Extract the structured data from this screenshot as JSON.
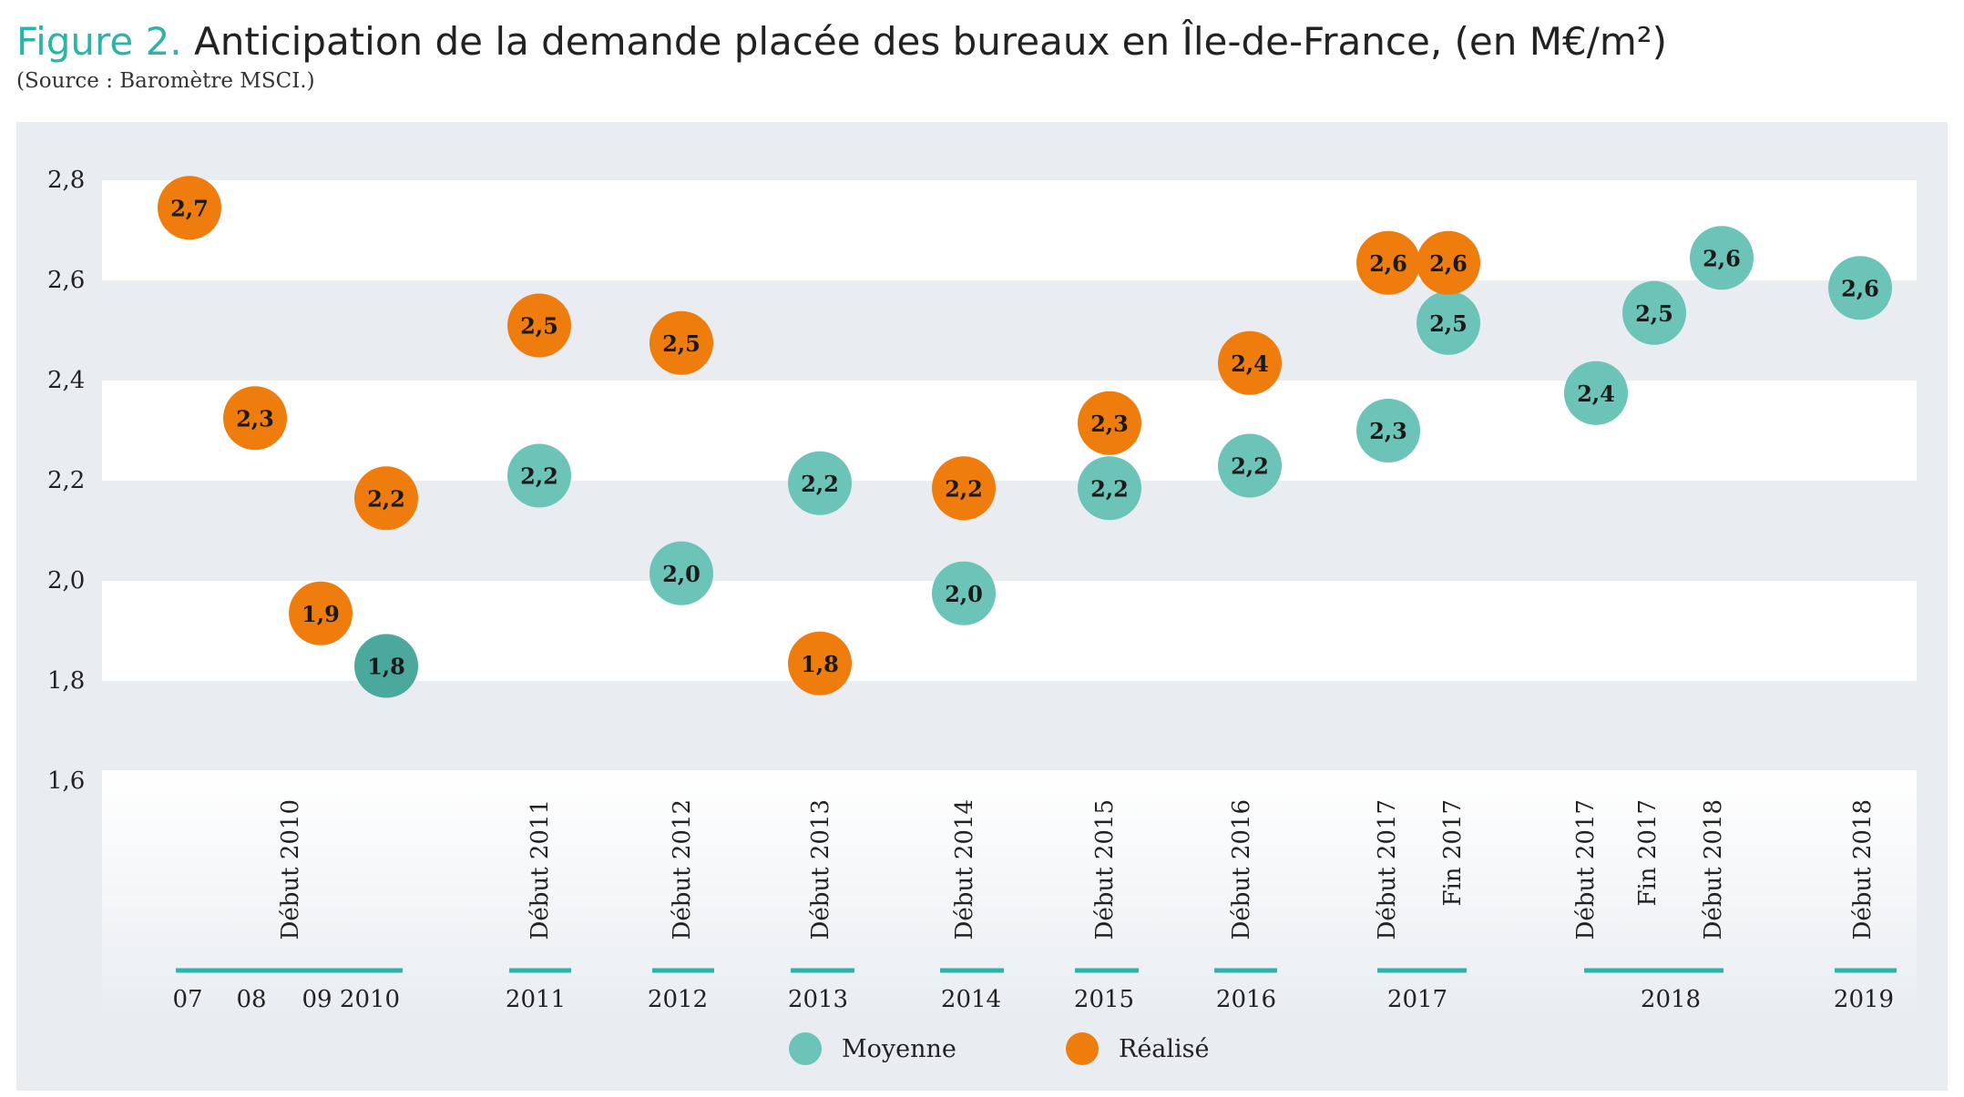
{
  "header": {
    "figure_number": "Figure 2.",
    "title": "Anticipation de la demande placée des bureaux en Île-de-France, (en M€/m²)",
    "source": "(Source : Baromètre MSCI.)"
  },
  "colors": {
    "moyenne": "#6cc3b7",
    "realise": "#ef7d0d",
    "band_white": "#ffffff",
    "panel_bg": "#e9edf1",
    "axis_teal": "#2bb5a8"
  },
  "legend": {
    "moyenne_label": "Moyenne",
    "realise_label": "Réalisé"
  },
  "chart_data": {
    "type": "scatter",
    "ylim": [
      1.6,
      2.8
    ],
    "yticks": [
      "1,6",
      "1,8",
      "2,0",
      "2,2",
      "2,4",
      "2,6",
      "2,8"
    ],
    "x_categories": [
      "07",
      "08",
      "09",
      "2010",
      "Début 2011",
      "Début 2012",
      "Début 2013",
      "Début 2014",
      "Début 2015",
      "Début 2016",
      "Début 2017",
      "Fin 2017",
      "Début 2017",
      "Fin 2017",
      "Début 2018",
      "Début 2018"
    ],
    "series": [
      {
        "name": "Moyenne",
        "points": [
          {
            "x": "2010",
            "y": 1.8,
            "label": "1,8"
          },
          {
            "x": "Début 2011",
            "y": 2.2,
            "label": "2,2"
          },
          {
            "x": "Début 2012",
            "y": 2.0,
            "label": "2,0"
          },
          {
            "x": "Début 2013",
            "y": 2.2,
            "label": "2,2"
          },
          {
            "x": "Début 2014",
            "y": 2.0,
            "label": "2,0"
          },
          {
            "x": "Début 2015",
            "y": 2.2,
            "label": "2,2"
          },
          {
            "x": "Début 2016",
            "y": 2.2,
            "label": "2,2"
          },
          {
            "x": "Début 2017",
            "y": 2.3,
            "label": "2,3"
          },
          {
            "x": "Fin 2017",
            "y": 2.5,
            "label": "2,5"
          },
          {
            "x": "Début 2017 (2018)",
            "y": 2.4,
            "label": "2,4"
          },
          {
            "x": "Fin 2017 (2018)",
            "y": 2.5,
            "label": "2,5"
          },
          {
            "x": "Début 2018 (2018)",
            "y": 2.6,
            "label": "2,6"
          },
          {
            "x": "Début 2018 (2019)",
            "y": 2.6,
            "label": "2,6"
          }
        ]
      },
      {
        "name": "Réalisé",
        "points": [
          {
            "x": "07",
            "y": 2.7,
            "label": "2,7"
          },
          {
            "x": "08",
            "y": 2.3,
            "label": "2,3"
          },
          {
            "x": "09",
            "y": 1.9,
            "label": "1,9"
          },
          {
            "x": "2010",
            "y": 2.2,
            "label": "2,2"
          },
          {
            "x": "Début 2011",
            "y": 2.5,
            "label": "2,5"
          },
          {
            "x": "Début 2012",
            "y": 2.5,
            "label": "2,5"
          },
          {
            "x": "Début 2013",
            "y": 1.8,
            "label": "1,8"
          },
          {
            "x": "Début 2014",
            "y": 2.2,
            "label": "2,2"
          },
          {
            "x": "Début 2015",
            "y": 2.3,
            "label": "2,3"
          },
          {
            "x": "Début 2016",
            "y": 2.4,
            "label": "2,4"
          },
          {
            "x": "Début 2017",
            "y": 2.6,
            "label": "2,6"
          },
          {
            "x": "Fin 2017",
            "y": 2.6,
            "label": "2,6"
          }
        ]
      }
    ],
    "period_labels": [
      "Début 2010",
      "Début 2011",
      "Début 2012",
      "Début 2013",
      "Début 2014",
      "Début 2015",
      "Début 2016",
      "Début 2017",
      "Fin 2017",
      "Début 2017",
      "Fin 2017",
      "Début 2018",
      "Début 2018"
    ],
    "year_labels": [
      "07",
      "08",
      "09",
      "2010",
      "2011",
      "2012",
      "2013",
      "2014",
      "2015",
      "2016",
      "2017",
      "2018",
      "2019"
    ],
    "legend_position": "bottom",
    "grid": "alternating horizontal bands"
  }
}
